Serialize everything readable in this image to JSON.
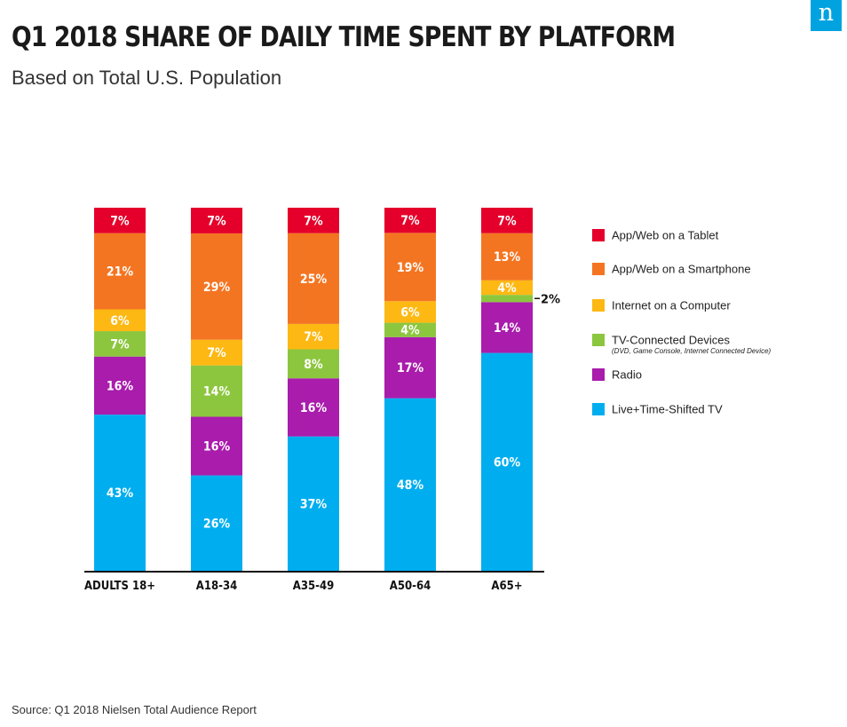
{
  "logo_text": "n",
  "title": "Q1 2018 SHARE OF DAILY TIME SPENT BY PLATFORM",
  "subtitle": "Based on Total U.S. Population",
  "source": "Source: Q1 2018 Nielsen Total Audience Report",
  "chart_data": {
    "type": "bar",
    "stacked": true,
    "title": "Q1 2018 SHARE OF DAILY TIME SPENT BY PLATFORM",
    "subtitle": "Based on Total U.S. Population",
    "unit": "%",
    "categories": [
      "ADULTS 18+",
      "A18-34",
      "A35-49",
      "A50-64",
      "A65+"
    ],
    "ylim": [
      0,
      100
    ],
    "grid": false,
    "legend_position": "right",
    "series": [
      {
        "name": "Live+Time-Shifted TV",
        "color": "#00aeef",
        "values": [
          43,
          26,
          37,
          48,
          60
        ],
        "labels": [
          "43%",
          "26%",
          "37%",
          "48%",
          "60%"
        ]
      },
      {
        "name": "Radio",
        "color": "#a91cac",
        "values": [
          16,
          16,
          16,
          17,
          14
        ],
        "labels": [
          "16%",
          "16%",
          "16%",
          "17%",
          "14%"
        ]
      },
      {
        "name": "TV-Connected Devices",
        "note": "(DVD, Game Console, Internet Connected Device)",
        "color": "#8cc63f",
        "values": [
          7,
          14,
          8,
          4,
          2
        ],
        "labels": [
          "7%",
          "14%",
          "8%",
          "4%",
          ""
        ]
      },
      {
        "name": "Internet on a Computer",
        "color": "#fdb813",
        "values": [
          6,
          7,
          7,
          6,
          4
        ],
        "labels": [
          "6%",
          "7%",
          "7%",
          "6%",
          "4%"
        ]
      },
      {
        "name": "App/Web on a Smartphone",
        "color": "#f47521",
        "values": [
          21,
          29,
          25,
          19,
          13
        ],
        "labels": [
          "21%",
          "29%",
          "25%",
          "19%",
          "13%"
        ]
      },
      {
        "name": "App/Web on a Tablet",
        "color": "#e4002b",
        "values": [
          7,
          7,
          7,
          7,
          7
        ],
        "labels": [
          "7%",
          "7%",
          "7%",
          "7%",
          "7%"
        ]
      }
    ],
    "annotations": [
      {
        "category": "A65+",
        "series": "TV-Connected Devices",
        "text": "2%"
      }
    ]
  }
}
